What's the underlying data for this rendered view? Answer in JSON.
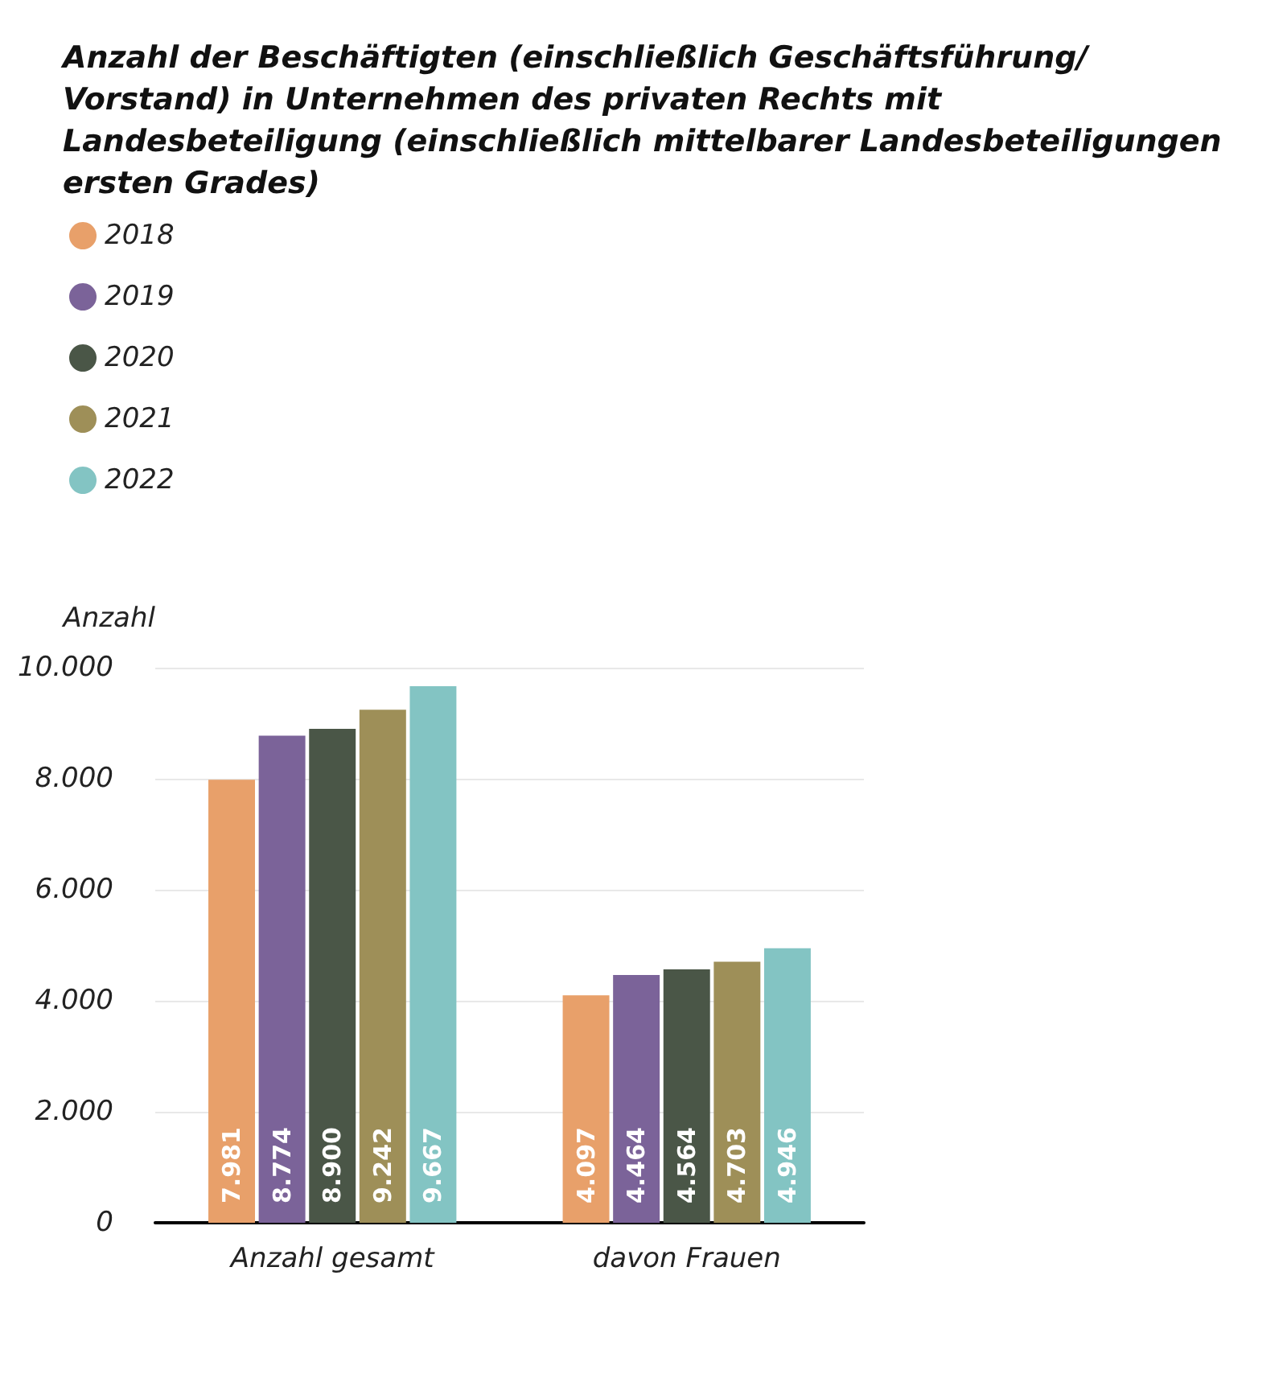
{
  "chart_data": {
    "type": "bar",
    "title": "Anzahl der Beschäftigten (einschließlich Geschäftsführung/Vorstand) in Unternehmen des privaten Rechts mit Landesbeteiligung (einschließlich mittelbarer Landesbeteiligungen ersten Grades)",
    "ylabel": "Anzahl",
    "categories": [
      "Anzahl gesamt",
      "davon Frauen"
    ],
    "series": [
      {
        "name": "2018",
        "color": "#e8a06a",
        "values": [
          7981,
          4097
        ],
        "value_labels": [
          "7.981",
          "4.097"
        ]
      },
      {
        "name": "2019",
        "color": "#7b6399",
        "values": [
          8774,
          4464
        ],
        "value_labels": [
          "8.774",
          "4.464"
        ]
      },
      {
        "name": "2020",
        "color": "#4a5647",
        "values": [
          8900,
          4564
        ],
        "value_labels": [
          "8.900",
          "4.564"
        ]
      },
      {
        "name": "2021",
        "color": "#9e8f58",
        "values": [
          9242,
          4703
        ],
        "value_labels": [
          "9.242",
          "4.703"
        ]
      },
      {
        "name": "2022",
        "color": "#83c4c3",
        "values": [
          9667,
          4946
        ],
        "value_labels": [
          "9.667",
          "4.946"
        ]
      }
    ],
    "ylim": [
      0,
      10000
    ],
    "yticks": [
      0,
      {
        "value": 2000,
        "label": "2.000"
      },
      {
        "value": 4000,
        "label": "4.000"
      },
      {
        "value": 6000,
        "label": "6.000"
      },
      {
        "value": 8000,
        "label": "8.000"
      },
      {
        "value": 10000,
        "label": "10.000"
      }
    ],
    "grid": "y",
    "legend": "top left"
  }
}
